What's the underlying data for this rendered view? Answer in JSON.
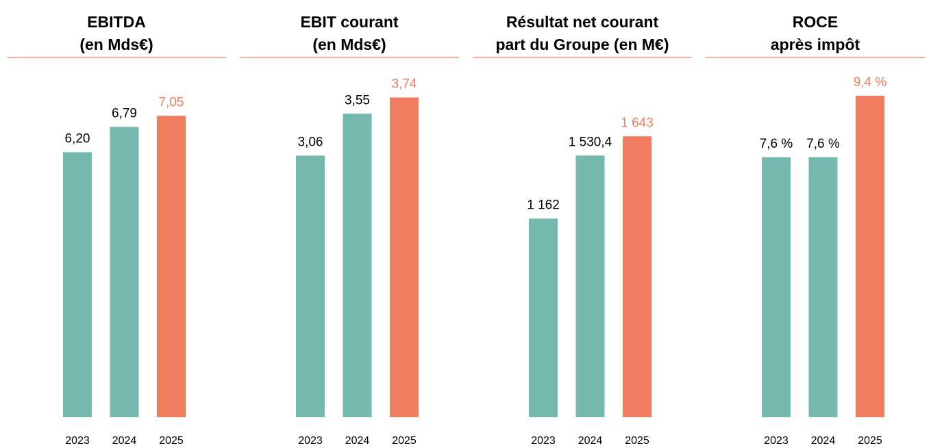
{
  "chart_data": [
    {
      "type": "bar",
      "title": [
        "EBITDA",
        "(en Mds€)"
      ],
      "categories": [
        "2023",
        "2024",
        "2025"
      ],
      "values": [
        6.2,
        6.79,
        7.05
      ],
      "value_labels": [
        "6,20",
        "6,79",
        "7,05"
      ],
      "colors": [
        "#74b8ae",
        "#74b8ae",
        "#ef7d5e"
      ],
      "value_label_colors": [
        "#000000",
        "#000000",
        "#ef7d5e"
      ],
      "ylim": [
        0,
        8
      ]
    },
    {
      "type": "bar",
      "title": [
        "EBIT courant",
        "(en Mds€)"
      ],
      "categories": [
        "2023",
        "2024",
        "2025"
      ],
      "values": [
        3.06,
        3.55,
        3.74
      ],
      "value_labels": [
        "3,06",
        "3,55",
        "3,74"
      ],
      "colors": [
        "#74b8ae",
        "#74b8ae",
        "#ef7d5e"
      ],
      "value_label_colors": [
        "#000000",
        "#000000",
        "#ef7d5e"
      ],
      "ylim": [
        0,
        4
      ]
    },
    {
      "type": "bar",
      "title": [
        "Résultat net courant",
        "part du Groupe (en M€)"
      ],
      "categories": [
        "2023",
        "2024",
        "2025"
      ],
      "values": [
        1162,
        1530.4,
        1643
      ],
      "value_labels": [
        "1 162",
        "1 530,4",
        "1 643"
      ],
      "colors": [
        "#74b8ae",
        "#74b8ae",
        "#ef7d5e"
      ],
      "value_label_colors": [
        "#000000",
        "#000000",
        "#ef7d5e"
      ],
      "ylim": [
        0,
        2000
      ]
    },
    {
      "type": "bar",
      "title": [
        "ROCE",
        "après impôt"
      ],
      "categories": [
        "2023",
        "2024",
        "2025"
      ],
      "values": [
        7.6,
        7.6,
        9.4
      ],
      "value_labels": [
        "7,6 %",
        "7,6 %",
        "9,4 %"
      ],
      "colors": [
        "#74b8ae",
        "#74b8ae",
        "#ef7d5e"
      ],
      "value_label_colors": [
        "#000000",
        "#000000",
        "#ef7d5e"
      ],
      "ylim": [
        0,
        10
      ]
    }
  ]
}
